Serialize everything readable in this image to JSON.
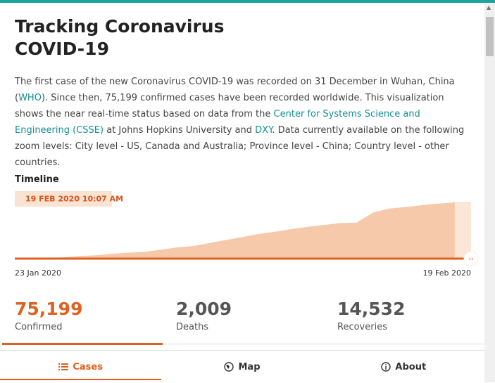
{
  "header": {
    "title_line1": "Tracking Coronavirus",
    "title_line2": "COVID-19"
  },
  "description": [
    {
      "text": "The first case of the new Coronavirus COVID-19 was recorded on 31 December in Wuhan, China (",
      "link": false
    },
    {
      "text": "WHO",
      "link": true
    },
    {
      "text": "). Since then, 75,199 confirmed cases have been recorded worldwide. This visualization shows the near real-time status based on data from the ",
      "link": false
    },
    {
      "text": "Center for Systems Science and Engineering (CSSE)",
      "link": true
    },
    {
      "text": " at Johns Hopkins University and ",
      "link": false
    },
    {
      "text": "DXY",
      "link": true
    },
    {
      "text": ". Data currently available on the following zoom levels: City level - US, Canada and Australia; Province level - China; Country level - other countries.",
      "link": false
    }
  ],
  "timeline": {
    "label": "Timeline",
    "current": "19 FEB 2020 10:07 AM",
    "chart_data": {
      "type": "area",
      "color": "#f6c9ab",
      "line_color": "#e0601f",
      "categories": [
        "23 Jan 2020",
        null,
        null,
        null,
        null,
        null,
        null,
        null,
        null,
        null,
        null,
        null,
        null,
        null,
        null,
        null,
        null,
        null,
        null,
        null,
        null,
        null,
        null,
        null,
        null,
        null,
        null,
        "19 Feb 2020"
      ],
      "values": [
        600,
        1000,
        1300,
        1800,
        3500,
        4500,
        6500,
        8000,
        9000,
        12000,
        15000,
        17000,
        21000,
        25000,
        29000,
        33000,
        36000,
        39500,
        42500,
        45000,
        47500,
        48000,
        61500,
        67000,
        69000,
        71500,
        73500,
        75199
      ]
    }
  },
  "stats": [
    {
      "value": "75,199",
      "label": "Confirmed"
    },
    {
      "value": "2,009",
      "label": "Deaths"
    },
    {
      "value": "14,532",
      "label": "Recoveries"
    }
  ],
  "nav": [
    "Cases",
    "Map",
    "About"
  ]
}
